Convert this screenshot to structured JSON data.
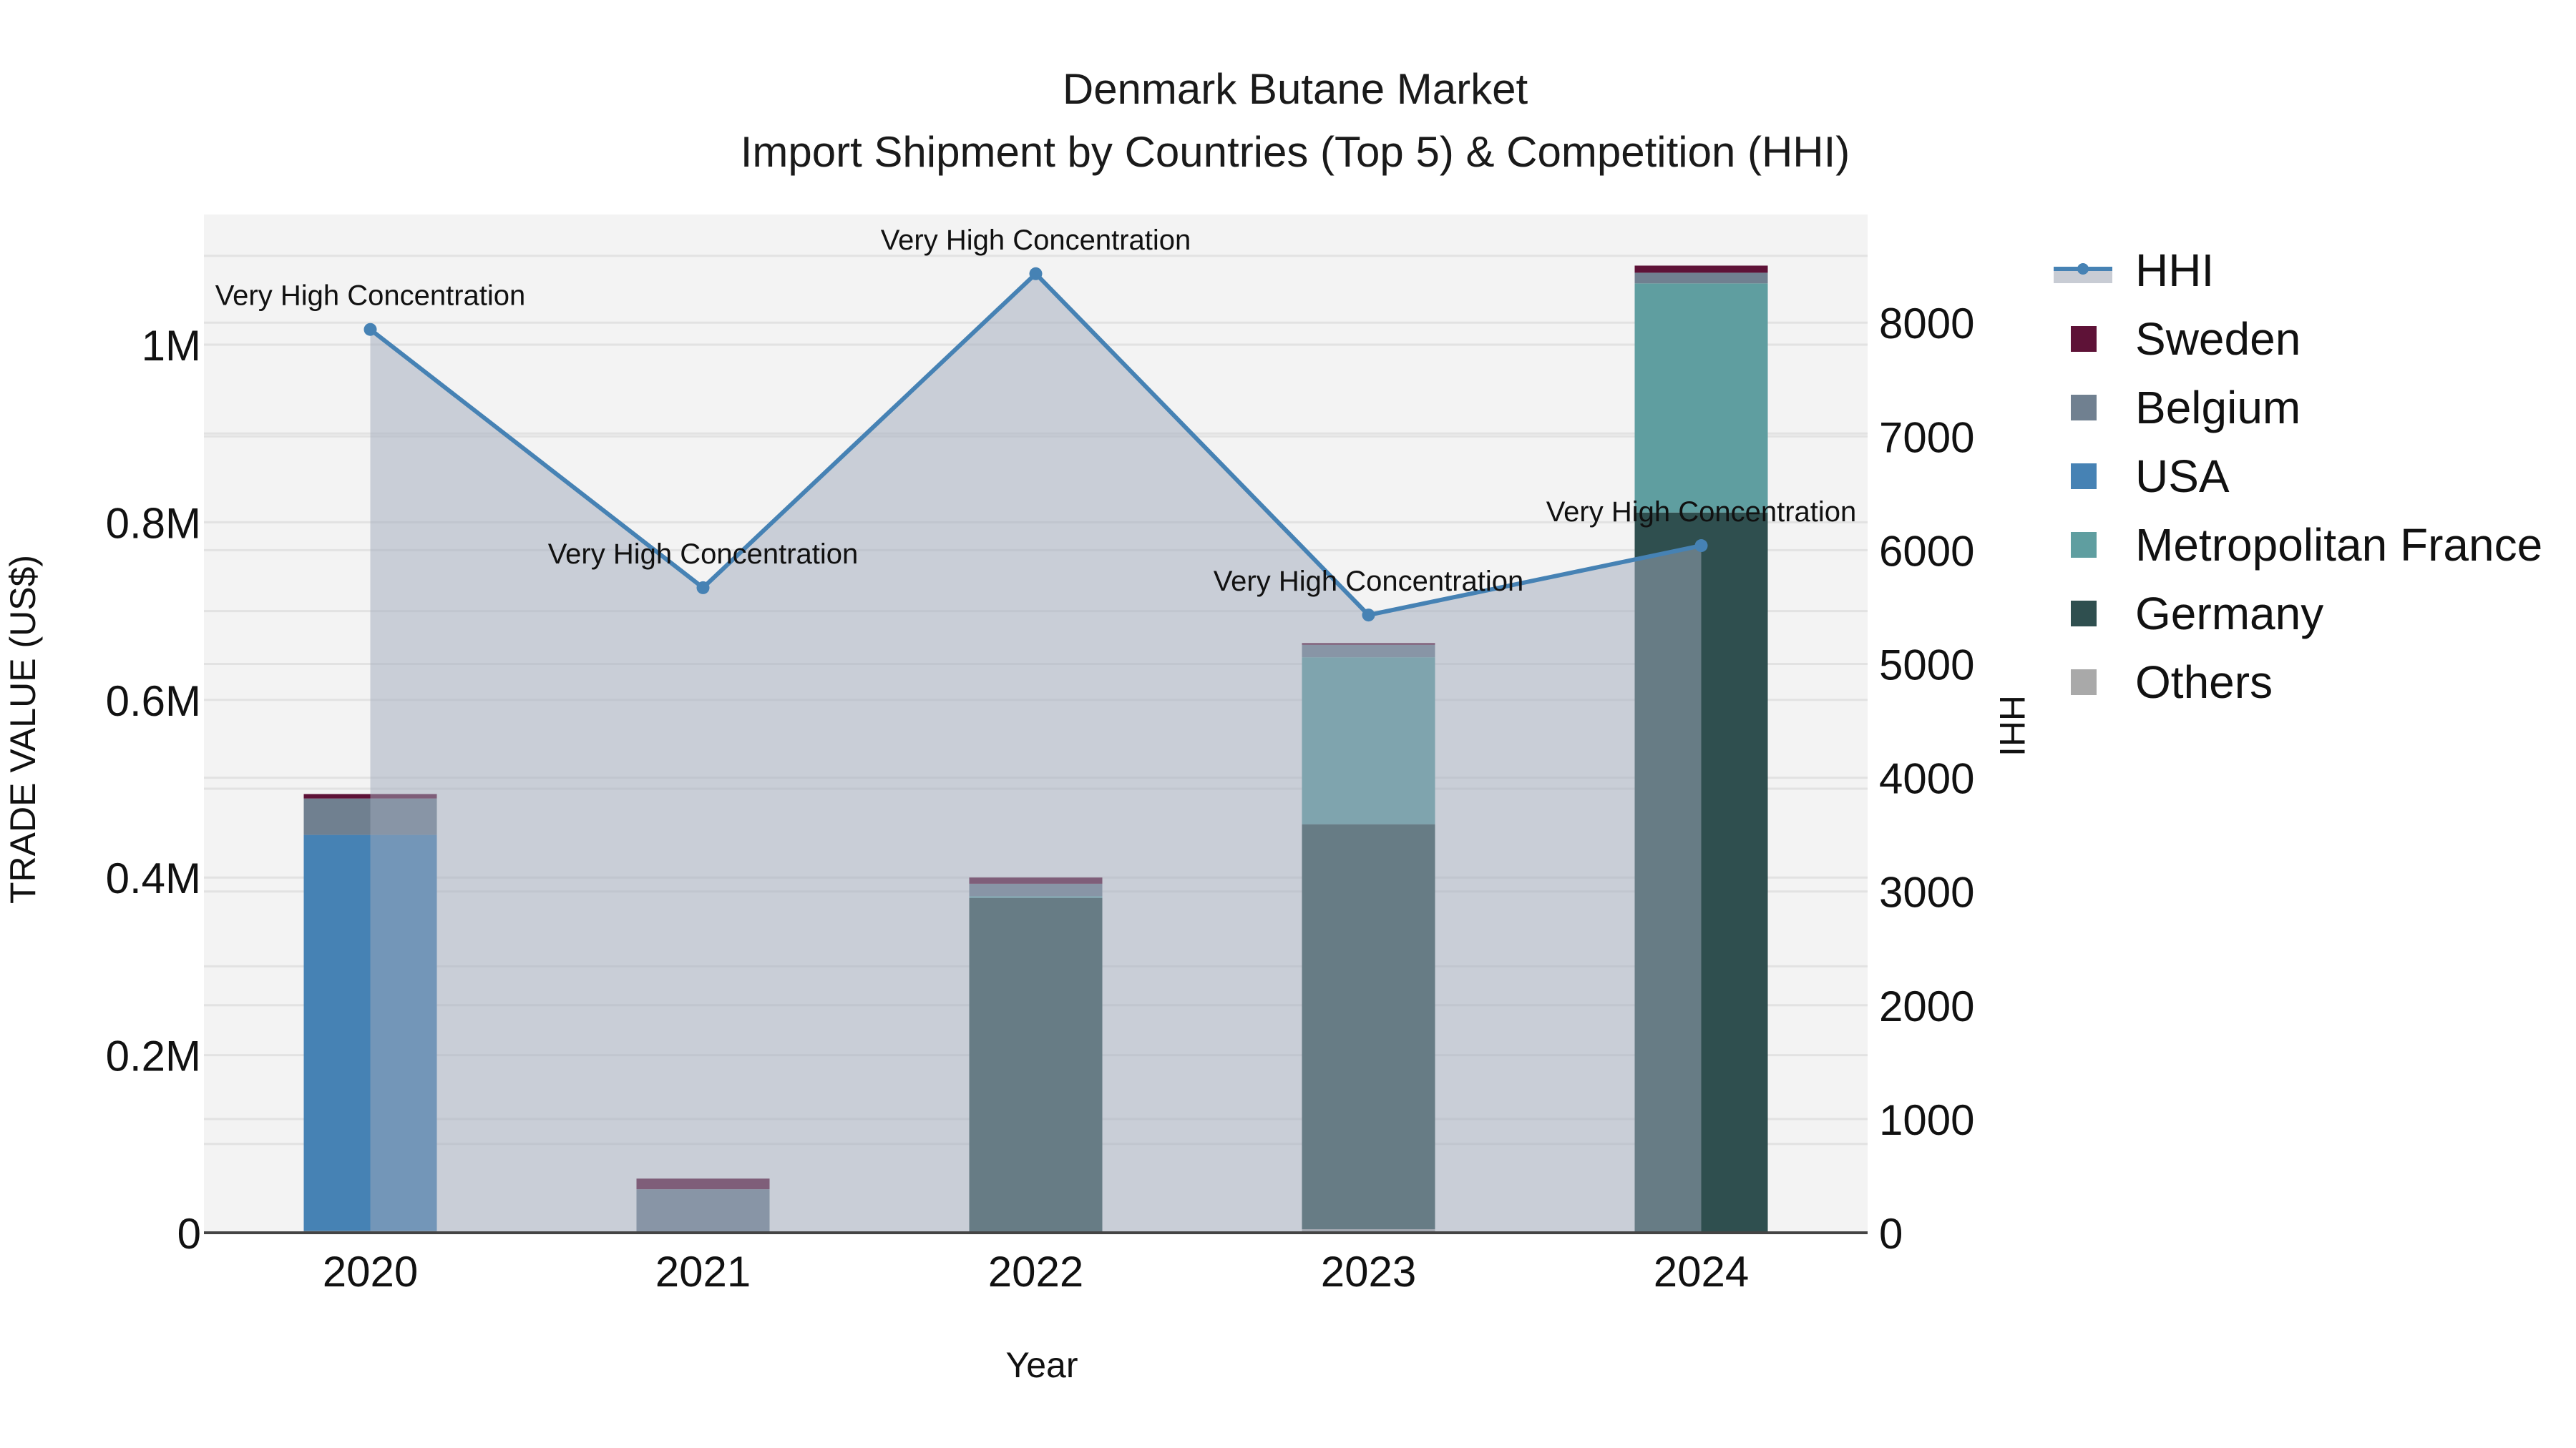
{
  "title": {
    "line1": "Denmark Butane Market",
    "line2": "Import Shipment by Countries (Top 5) & Competition (HHI)"
  },
  "axes": {
    "x_title": "Year",
    "y_left_title": "TRADE VALUE (US$)",
    "y_right_title": "HHI",
    "y_left_ticks": [
      "0",
      "0.2M",
      "0.4M",
      "0.6M",
      "0.8M",
      "1M"
    ],
    "y_right_ticks": [
      "0",
      "1000",
      "2000",
      "3000",
      "4000",
      "5000",
      "6000",
      "7000",
      "8000"
    ]
  },
  "legend": {
    "items": [
      {
        "label": "HHI",
        "type": "line",
        "color": "#4682b4"
      },
      {
        "label": "Sweden",
        "type": "bar",
        "color": "#5e1237"
      },
      {
        "label": "Belgium",
        "type": "bar",
        "color": "#708090"
      },
      {
        "label": "USA",
        "type": "bar",
        "color": "#4682b4"
      },
      {
        "label": "Metropolitan France",
        "type": "bar",
        "color": "#5f9ea0"
      },
      {
        "label": "Germany",
        "type": "bar",
        "color": "#2f4f4f"
      },
      {
        "label": "Others",
        "type": "bar",
        "color": "#a9a9a9"
      }
    ]
  },
  "chart_data": {
    "type": "bar",
    "stacked": true,
    "title": "Denmark Butane Market - Import Shipment by Countries (Top 5) & Competition (HHI)",
    "xlabel": "Year",
    "ylabel": "TRADE VALUE (US$)",
    "y2label": "HHI",
    "categories": [
      "2020",
      "2021",
      "2022",
      "2023",
      "2024"
    ],
    "ylim": [
      0,
      1150000
    ],
    "y2lim": [
      0,
      9000
    ],
    "grid": true,
    "legend_position": "right",
    "series": [
      {
        "name": "Others",
        "color": "#a9a9a9",
        "values": [
          2000,
          0,
          1000,
          4000,
          0
        ]
      },
      {
        "name": "Germany",
        "color": "#2f4f4f",
        "values": [
          0,
          0,
          376000,
          456000,
          811000
        ]
      },
      {
        "name": "Metropolitan France",
        "color": "#5f9ea0",
        "values": [
          0,
          0,
          2000,
          188000,
          258000
        ]
      },
      {
        "name": "USA",
        "color": "#4682b4",
        "values": [
          446000,
          0,
          0,
          0,
          0
        ]
      },
      {
        "name": "Belgium",
        "color": "#708090",
        "values": [
          41000,
          49000,
          14000,
          14000,
          12000
        ]
      },
      {
        "name": "Sweden",
        "color": "#5e1237",
        "values": [
          5000,
          12000,
          7000,
          2000,
          8000
        ]
      }
    ],
    "line_series": {
      "name": "HHI",
      "axis": "right",
      "color": "#4682b4",
      "fill": "tozeroy",
      "values": [
        7940,
        5670,
        8430,
        5430,
        6040
      ],
      "annotations": [
        "Very High Concentration",
        "Very High Concentration",
        "Very High Concentration",
        "Very High Concentration",
        "Very High Concentration"
      ]
    }
  }
}
